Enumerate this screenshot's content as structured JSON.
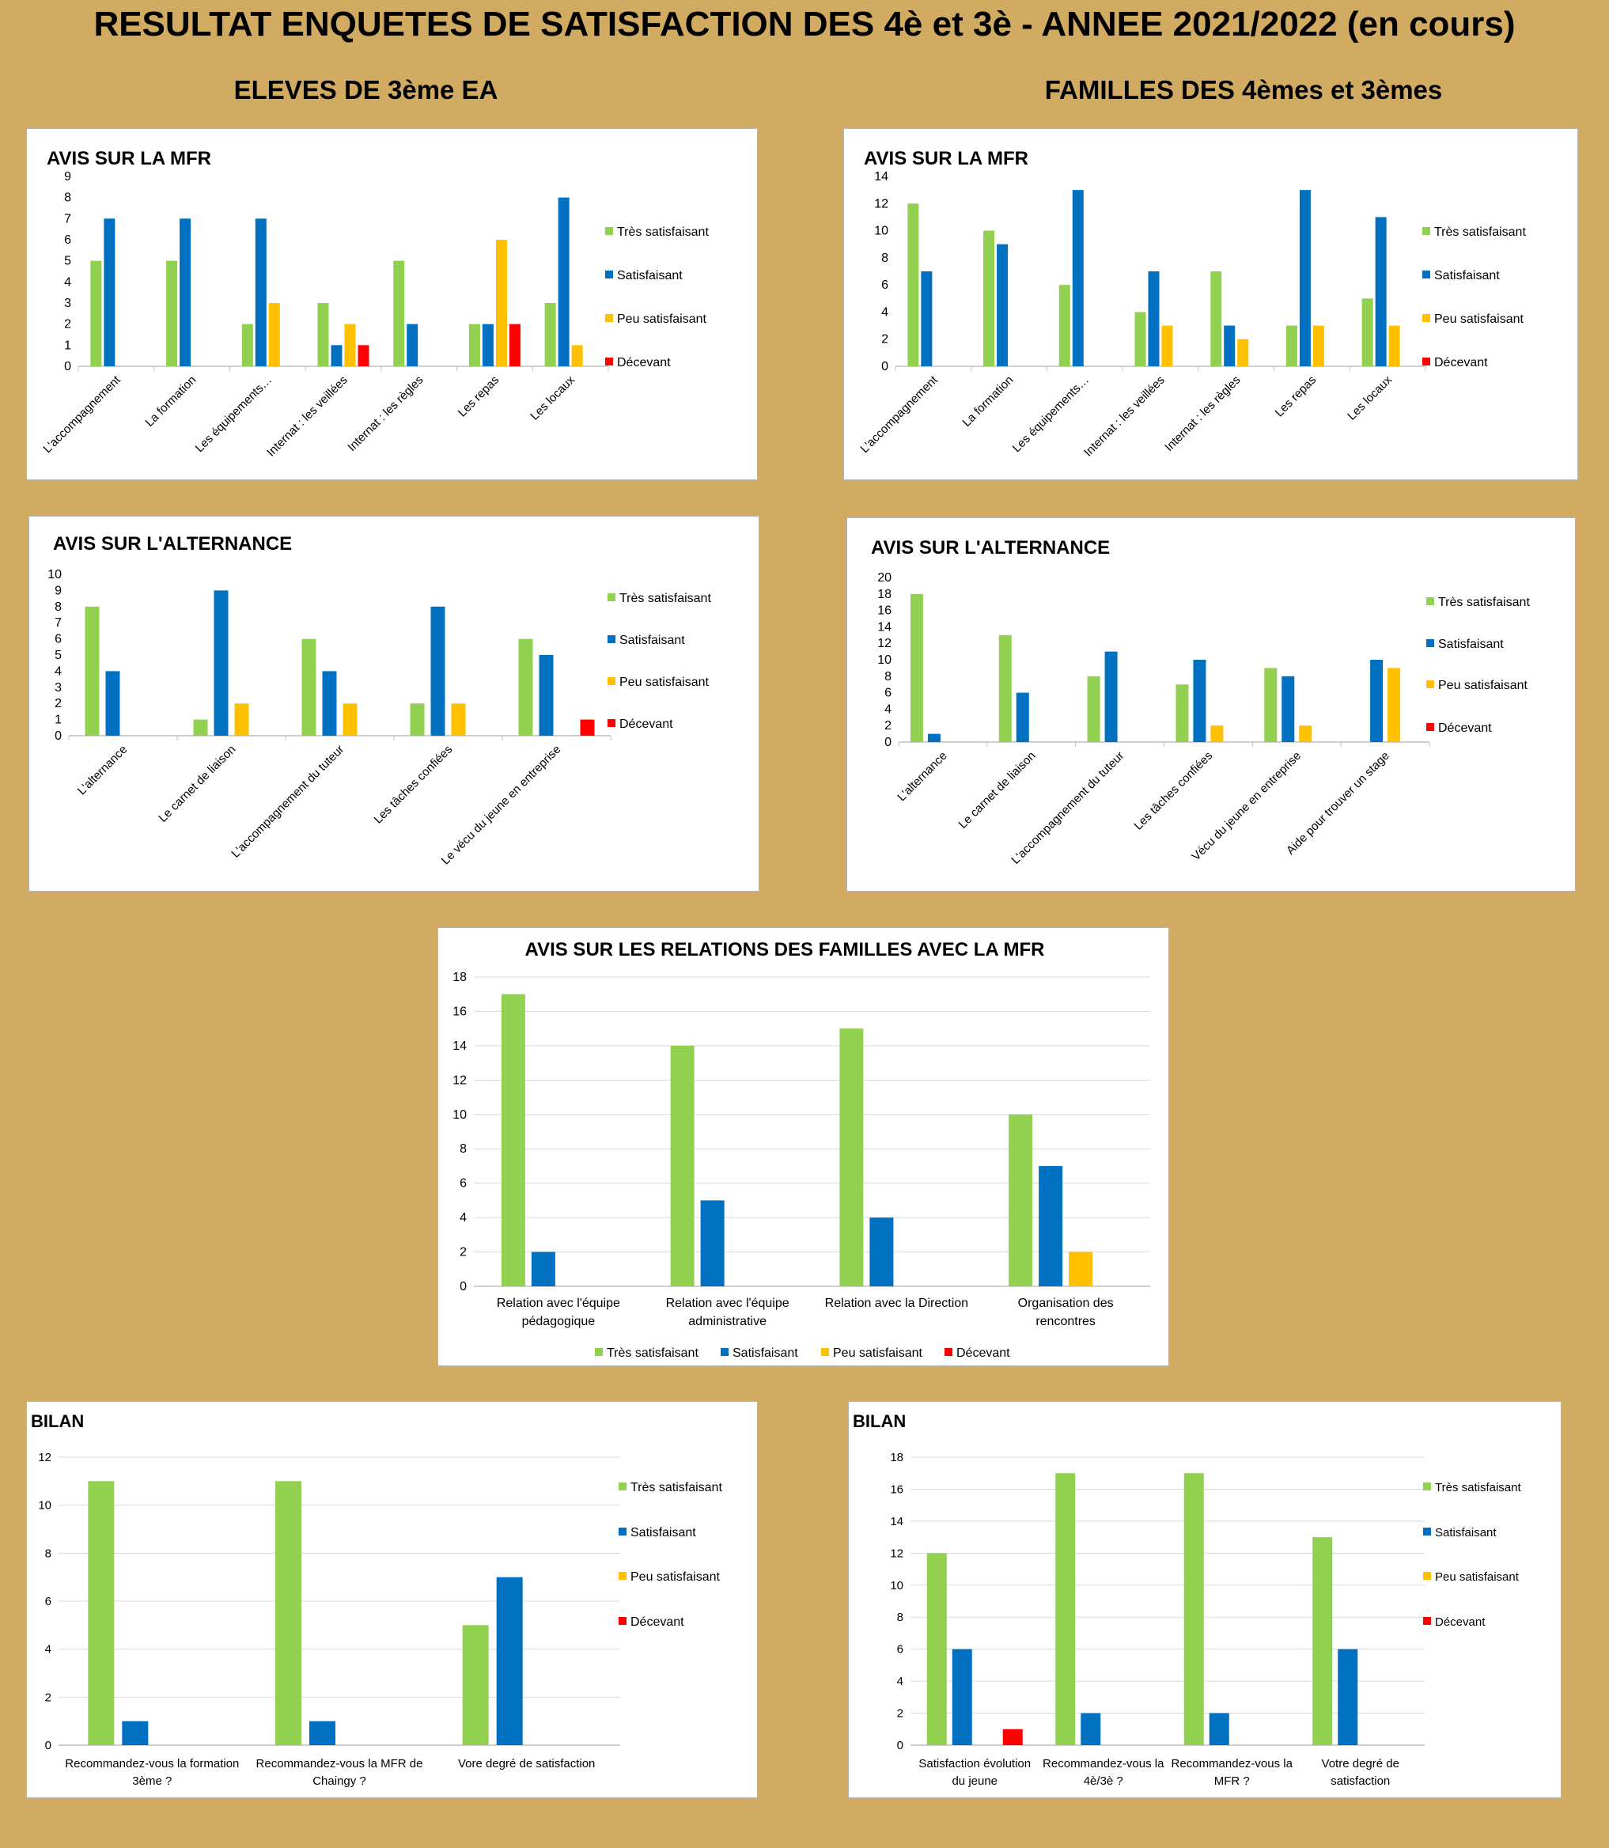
{
  "page": {
    "title": "RESULTAT ENQUETES DE SATISFACTION DES 4è et 3è - ANNEE 2021/2022 (en cours)",
    "left_heading": "ELEVES DE 3ème EA",
    "right_heading": "FAMILLES DES 4èmes et 3èmes"
  },
  "colors": {
    "Très satisfaisant": "#92d050",
    "Satisfaisant": "#0070c0",
    "Peu satisfaisant": "#ffc000",
    "Décevant": "#ff0000",
    "grid": "#d9d9d9",
    "background": "#d0ab61"
  },
  "chart_data": [
    {
      "id": "eleves-mfr",
      "type": "bar",
      "title": "AVIS SUR LA MFR",
      "categories": [
        "L'accompagnement",
        "La formation",
        "Les équipements…",
        "Internat : les veillées",
        "Internat : les règles",
        "Les repas",
        "Les locaux"
      ],
      "series": [
        {
          "name": "Très satisfaisant",
          "values": [
            5,
            5,
            2,
            3,
            5,
            2,
            3
          ]
        },
        {
          "name": "Satisfaisant",
          "values": [
            7,
            7,
            7,
            1,
            2,
            2,
            8
          ]
        },
        {
          "name": "Peu satisfaisant",
          "values": [
            0,
            0,
            3,
            2,
            0,
            6,
            1
          ]
        },
        {
          "name": "Décevant",
          "values": [
            0,
            0,
            0,
            1,
            0,
            2,
            0
          ]
        }
      ],
      "ylim": [
        0,
        9
      ],
      "yticks": [
        0,
        1,
        2,
        3,
        4,
        5,
        6,
        7,
        8,
        9
      ],
      "grid": false,
      "legend": "right",
      "xlabel_rotation": "rotated"
    },
    {
      "id": "familles-mfr",
      "type": "bar",
      "title": "AVIS SUR LA MFR",
      "categories": [
        "L'accompagnement",
        "La formation",
        "Les équipements…",
        "Internat : les veillées",
        "Internat : les règles",
        "Les repas",
        "Les locaux"
      ],
      "series": [
        {
          "name": "Très satisfaisant",
          "values": [
            12,
            10,
            6,
            4,
            7,
            3,
            5
          ]
        },
        {
          "name": "Satisfaisant",
          "values": [
            7,
            9,
            13,
            7,
            3,
            13,
            11
          ]
        },
        {
          "name": "Peu satisfaisant",
          "values": [
            0,
            0,
            0,
            3,
            2,
            3,
            3
          ]
        },
        {
          "name": "Décevant",
          "values": [
            0,
            0,
            0,
            0,
            0,
            0,
            0
          ]
        }
      ],
      "ylim": [
        0,
        14
      ],
      "yticks": [
        0,
        2,
        4,
        6,
        8,
        10,
        12,
        14
      ],
      "grid": false,
      "legend": "right",
      "xlabel_rotation": "rotated"
    },
    {
      "id": "eleves-alternance",
      "type": "bar",
      "title": "AVIS SUR L'ALTERNANCE",
      "categories": [
        "L'alternance",
        "Le carnet de liaison",
        "L'accompagnement du tuteur",
        "Les tâches confiées",
        "Le vécu du jeune en entreprise"
      ],
      "series": [
        {
          "name": "Très satisfaisant",
          "values": [
            8,
            1,
            6,
            2,
            6
          ]
        },
        {
          "name": "Satisfaisant",
          "values": [
            4,
            9,
            4,
            8,
            5
          ]
        },
        {
          "name": "Peu satisfaisant",
          "values": [
            0,
            2,
            2,
            2,
            0
          ]
        },
        {
          "name": "Décevant",
          "values": [
            0,
            0,
            0,
            0,
            1
          ]
        }
      ],
      "ylim": [
        0,
        10
      ],
      "yticks": [
        0,
        1,
        2,
        3,
        4,
        5,
        6,
        7,
        8,
        9,
        10
      ],
      "grid": false,
      "legend": "right",
      "xlabel_rotation": "rotated"
    },
    {
      "id": "familles-alternance",
      "type": "bar",
      "title": "AVIS SUR L'ALTERNANCE",
      "categories": [
        "L'alternance",
        "Le carnet de liaison",
        "L'accompagnement du tuteur",
        "Les tâches confiées",
        "Vécu du jeune en entreprise",
        "Aide pour trouver un stage"
      ],
      "series": [
        {
          "name": "Très satisfaisant",
          "values": [
            18,
            13,
            8,
            7,
            9,
            0
          ]
        },
        {
          "name": "Satisfaisant",
          "values": [
            1,
            6,
            11,
            10,
            8,
            10
          ]
        },
        {
          "name": "Peu satisfaisant",
          "values": [
            0,
            0,
            0,
            2,
            2,
            9
          ]
        },
        {
          "name": "Décevant",
          "values": [
            0,
            0,
            0,
            0,
            0,
            0
          ]
        }
      ],
      "ylim": [
        0,
        20
      ],
      "yticks": [
        0,
        2,
        4,
        6,
        8,
        10,
        12,
        14,
        16,
        18,
        20
      ],
      "grid": false,
      "legend": "right",
      "xlabel_rotation": "rotated"
    },
    {
      "id": "relations-familles",
      "type": "bar",
      "title": "AVIS SUR LES RELATIONS DES FAMILLES AVEC LA MFR",
      "categories": [
        [
          "Relation avec l'équipe",
          "pédagogique"
        ],
        [
          "Relation avec l'équipe",
          "administrative"
        ],
        [
          "Relation avec la Direction"
        ],
        [
          "Organisation des",
          "rencontres"
        ]
      ],
      "series": [
        {
          "name": "Très satisfaisant",
          "values": [
            17,
            14,
            15,
            10
          ]
        },
        {
          "name": "Satisfaisant",
          "values": [
            2,
            5,
            4,
            7
          ]
        },
        {
          "name": "Peu satisfaisant",
          "values": [
            0,
            0,
            0,
            2
          ]
        },
        {
          "name": "Décevant",
          "values": [
            0,
            0,
            0,
            0
          ]
        }
      ],
      "ylim": [
        0,
        18
      ],
      "yticks": [
        0,
        2,
        4,
        6,
        8,
        10,
        12,
        14,
        16,
        18
      ],
      "grid": true,
      "legend": "bottom",
      "xlabel_rotation": "horizontal"
    },
    {
      "id": "bilan-eleves",
      "type": "bar",
      "title": "BILAN",
      "categories": [
        [
          "Recommandez-vous la formation",
          "3ème ?"
        ],
        [
          "Recommandez-vous la MFR de",
          "Chaingy ?"
        ],
        [
          "Vore degré de satisfaction"
        ]
      ],
      "series": [
        {
          "name": "Très satisfaisant",
          "values": [
            11,
            11,
            5
          ]
        },
        {
          "name": "Satisfaisant",
          "values": [
            1,
            1,
            7
          ]
        },
        {
          "name": "Peu satisfaisant",
          "values": [
            0,
            0,
            0
          ]
        },
        {
          "name": "Décevant",
          "values": [
            0,
            0,
            0
          ]
        }
      ],
      "ylim": [
        0,
        12
      ],
      "yticks": [
        0,
        2,
        4,
        6,
        8,
        10,
        12
      ],
      "grid": true,
      "legend": "right",
      "xlabel_rotation": "horizontal"
    },
    {
      "id": "bilan-familles",
      "type": "bar",
      "title": "BILAN",
      "categories": [
        [
          "Satisfaction évolution",
          "du jeune"
        ],
        [
          "Recommandez-vous la",
          "4è/3è ?"
        ],
        [
          "Recommandez-vous la",
          "MFR  ?"
        ],
        [
          "Votre degré de",
          "satisfaction"
        ]
      ],
      "series": [
        {
          "name": "Très satisfaisant",
          "values": [
            12,
            17,
            17,
            13
          ]
        },
        {
          "name": "Satisfaisant",
          "values": [
            6,
            2,
            2,
            6
          ]
        },
        {
          "name": "Peu satisfaisant",
          "values": [
            0,
            0,
            0,
            0
          ]
        },
        {
          "name": "Décevant",
          "values": [
            1,
            0,
            0,
            0
          ]
        }
      ],
      "ylim": [
        0,
        18
      ],
      "yticks": [
        0,
        2,
        4,
        6,
        8,
        10,
        12,
        14,
        16,
        18
      ],
      "grid": true,
      "legend": "right",
      "xlabel_rotation": "horizontal"
    }
  ]
}
